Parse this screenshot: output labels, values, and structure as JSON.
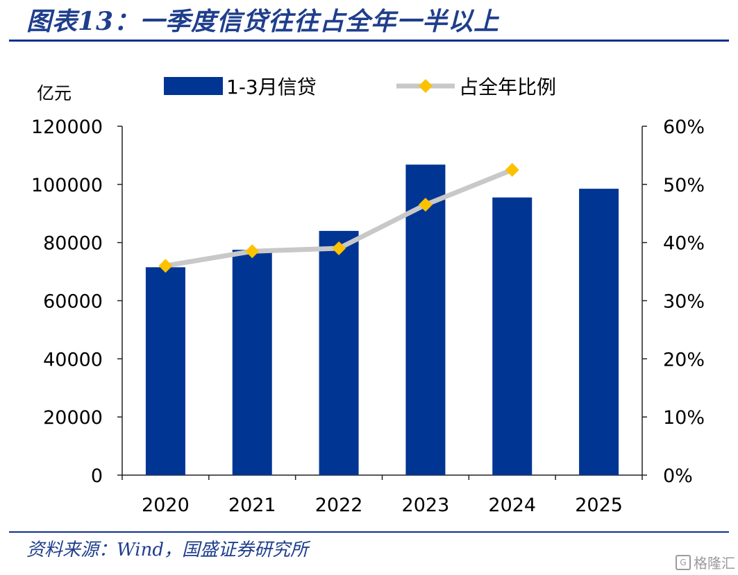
{
  "header": {
    "title": "图表13：一季度信贷往往占全年一半以上"
  },
  "footer": {
    "source": "资料来源：Wind，国盛证券研究所"
  },
  "watermark": {
    "logo_glyph": "G",
    "text": "格隆汇"
  },
  "chart_data": {
    "type": "bar",
    "title": "",
    "categories": [
      "2020",
      "2021",
      "2022",
      "2023",
      "2024",
      "2025"
    ],
    "left_axis": {
      "unit_label": "亿元",
      "min": 0,
      "max": 120000,
      "ticks": [
        "0",
        "20000",
        "40000",
        "60000",
        "80000",
        "100000",
        "120000"
      ]
    },
    "right_axis": {
      "min": 0,
      "max": 0.6,
      "ticks": [
        "0%",
        "10%",
        "20%",
        "30%",
        "40%",
        "50%",
        "60%"
      ]
    },
    "legend_position": "top",
    "grid": false,
    "series": [
      {
        "name": "1-3月信贷",
        "type": "bar",
        "axis": "left",
        "color": "#003594",
        "values": [
          71500,
          77500,
          84000,
          106800,
          95500,
          98500
        ]
      },
      {
        "name": "占全年比例",
        "type": "line",
        "axis": "right",
        "line_color": "#c8c8c8",
        "marker_color": "#fcc200",
        "values": [
          0.36,
          0.385,
          0.39,
          0.465,
          0.525,
          null
        ]
      }
    ]
  }
}
